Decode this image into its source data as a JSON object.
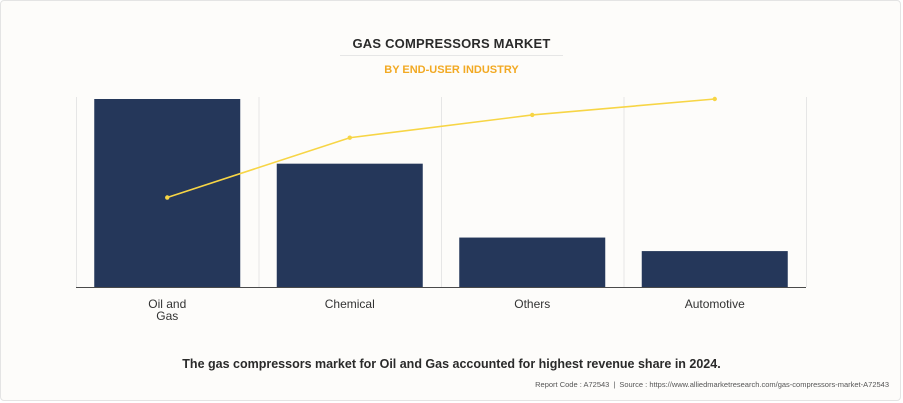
{
  "header": {
    "title": "GAS COMPRESSORS MARKET",
    "subtitle": "BY END-USER INDUSTRY"
  },
  "chart_data": {
    "type": "bar",
    "categories": [
      "Oil and Gas",
      "Chemical",
      "Others",
      "Automotive"
    ],
    "series": [
      {
        "kind": "bar",
        "values": [
          100,
          65.6,
          26.3,
          19.1
        ]
      },
      {
        "kind": "line",
        "values": [
          47.6,
          79.4,
          91.5,
          100
        ]
      }
    ],
    "ylim": [
      0,
      100
    ],
    "grid": "vertical",
    "colors": {
      "bar": "#25375a",
      "line": "#f7d545"
    }
  },
  "footer": {
    "caption": "The gas compressors market for Oil and Gas accounted for highest revenue share in 2024.",
    "report_code": "Report Code : A72543",
    "source": "Source : https://www.alliedmarketresearch.com/gas-compressors-market-A72543"
  }
}
